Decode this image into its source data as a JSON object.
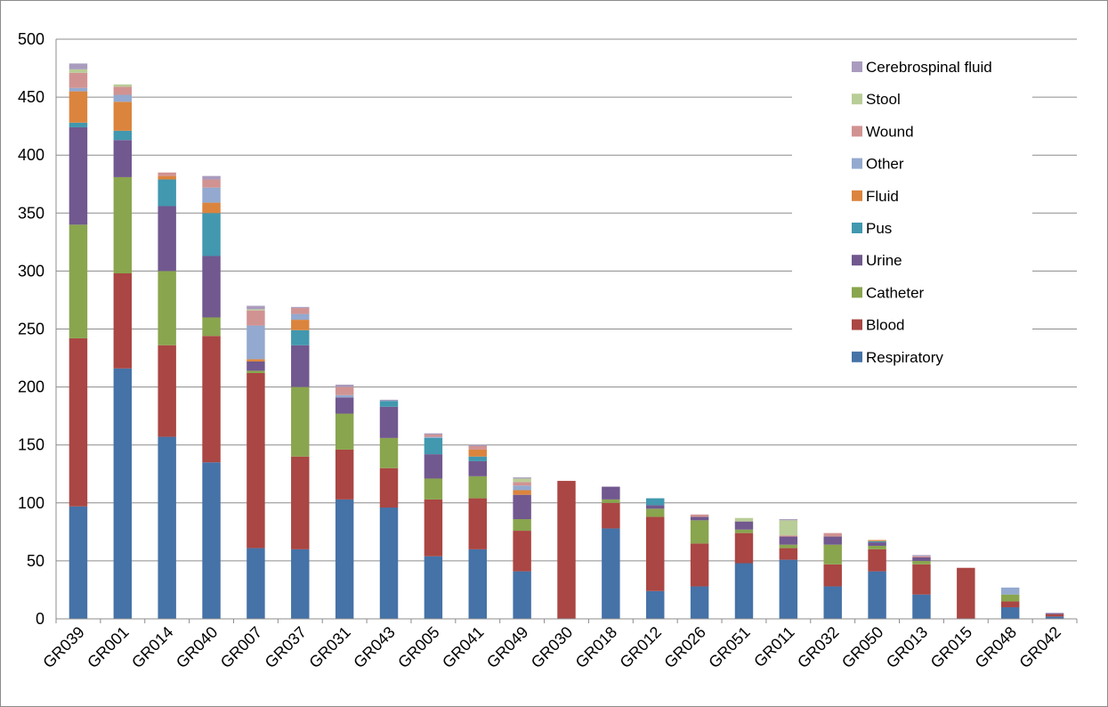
{
  "chart_data": {
    "type": "bar",
    "stacked": true,
    "ylim": [
      0,
      500
    ],
    "yticks": [
      0,
      50,
      100,
      150,
      200,
      250,
      300,
      350,
      400,
      450,
      500
    ],
    "grid": true,
    "legend_position": "top-right",
    "categories": [
      "GR039",
      "GR001",
      "GR014",
      "GR040",
      "GR007",
      "GR037",
      "GR031",
      "GR043",
      "GR005",
      "GR041",
      "GR049",
      "GR030",
      "GR018",
      "GR012",
      "GR026",
      "GR051",
      "GR011",
      "GR032",
      "GR050",
      "GR013",
      "GR015",
      "GR048",
      "GR042"
    ],
    "series": [
      {
        "name": "Respiratory",
        "color": "#4572A7",
        "values": [
          97,
          216,
          157,
          135,
          61,
          60,
          103,
          96,
          54,
          60,
          41,
          0,
          78,
          24,
          28,
          48,
          51,
          28,
          41,
          21,
          0,
          10,
          2
        ]
      },
      {
        "name": "Blood",
        "color": "#AA4643",
        "values": [
          145,
          82,
          79,
          109,
          151,
          80,
          43,
          34,
          49,
          44,
          35,
          119,
          22,
          64,
          37,
          26,
          10,
          19,
          19,
          26,
          44,
          5,
          2
        ]
      },
      {
        "name": "Catheter",
        "color": "#89A54E",
        "values": [
          98,
          83,
          64,
          16,
          2,
          60,
          31,
          26,
          18,
          19,
          10,
          0,
          3,
          7,
          20,
          3,
          3,
          17,
          3,
          3,
          0,
          6,
          0
        ]
      },
      {
        "name": "Urine",
        "color": "#71588F",
        "values": [
          84,
          32,
          56,
          53,
          8,
          36,
          14,
          27,
          21,
          13,
          21,
          0,
          11,
          3,
          3,
          7,
          7,
          7,
          3,
          3,
          0,
          0,
          1
        ]
      },
      {
        "name": "Pus",
        "color": "#4198AF",
        "values": [
          4,
          8,
          23,
          37,
          0,
          13,
          0,
          5,
          14,
          4,
          0,
          0,
          0,
          6,
          0,
          0,
          0,
          0,
          1,
          0,
          0,
          0,
          0
        ]
      },
      {
        "name": "Fluid",
        "color": "#DB843D",
        "values": [
          27,
          25,
          3,
          9,
          2,
          9,
          0,
          0,
          0,
          6,
          4,
          0,
          0,
          0,
          0,
          0,
          0,
          0,
          1,
          0,
          0,
          0,
          0
        ]
      },
      {
        "name": "Other",
        "color": "#93A9CF",
        "values": [
          3,
          6,
          0,
          13,
          29,
          5,
          2,
          0,
          1,
          0,
          4,
          0,
          0,
          0,
          0,
          0,
          0,
          0,
          0,
          0,
          0,
          6,
          0
        ]
      },
      {
        "name": "Wound",
        "color": "#D19392",
        "values": [
          13,
          7,
          3,
          7,
          13,
          5,
          7,
          0,
          2,
          3,
          3,
          0,
          0,
          0,
          2,
          0,
          1,
          3,
          0,
          1,
          0,
          0,
          0
        ]
      },
      {
        "name": "Stool",
        "color": "#B9CD96",
        "values": [
          3,
          2,
          0,
          0,
          1,
          0,
          0,
          0,
          0,
          0,
          3,
          0,
          0,
          0,
          0,
          3,
          13,
          0,
          0,
          0,
          0,
          0,
          0
        ]
      },
      {
        "name": "Cerebrospinal fluid",
        "color": "#A99BBD",
        "values": [
          5,
          0,
          0,
          3,
          3,
          1,
          2,
          1,
          1,
          1,
          1,
          0,
          0,
          0,
          0,
          0,
          1,
          0,
          0,
          1,
          0,
          0,
          0
        ]
      }
    ]
  }
}
